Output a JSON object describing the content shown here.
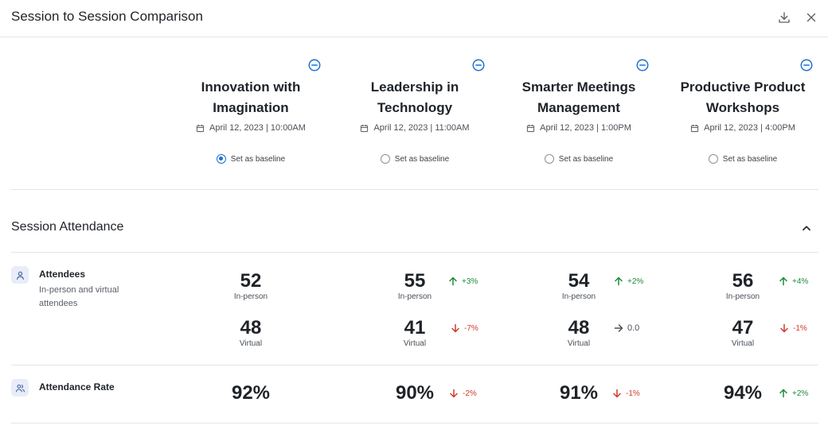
{
  "header": {
    "title": "Session to Session Comparison",
    "download_icon": "download-icon",
    "close_icon": "close-icon"
  },
  "sessions": [
    {
      "title_line1": "Innovation with",
      "title_line2": "Imagination",
      "date": "April 12, 2023 | 10:00AM",
      "baseline_label": "Set as baseline",
      "baseline": true
    },
    {
      "title_line1": "Leadership in",
      "title_line2": "Technology",
      "date": "April 12, 2023 | 11:00AM",
      "baseline_label": "Set as baseline",
      "baseline": false
    },
    {
      "title_line1": "Smarter Meetings",
      "title_line2": "Management",
      "date": "April 12, 2023 | 1:00PM",
      "baseline_label": "Set as baseline",
      "baseline": false
    },
    {
      "title_line1": "Productive Product",
      "title_line2": "Workshops",
      "date": "April 12, 2023 | 4:00PM",
      "baseline_label": "Set as baseline",
      "baseline": false
    }
  ],
  "section": {
    "title": "Session Attendance"
  },
  "attendees": {
    "label": "Attendees",
    "description": "In-person and virtual attendees",
    "in_person_label": "In-person",
    "virtual_label": "Virtual",
    "values": [
      {
        "in_person": "52",
        "virtual": "48",
        "in_change": "",
        "in_dir": "",
        "v_change": "",
        "v_dir": ""
      },
      {
        "in_person": "55",
        "virtual": "41",
        "in_change": "+3%",
        "in_dir": "up",
        "v_change": "-7%",
        "v_dir": "down"
      },
      {
        "in_person": "54",
        "virtual": "48",
        "in_change": "+2%",
        "in_dir": "up",
        "v_change": "0.0",
        "v_dir": "flat"
      },
      {
        "in_person": "56",
        "virtual": "47",
        "in_change": "+4%",
        "in_dir": "up",
        "v_change": "-1%",
        "v_dir": "down"
      }
    ]
  },
  "attendance_rate": {
    "label": "Attendance Rate",
    "values": [
      {
        "value": "92%",
        "change": "",
        "dir": ""
      },
      {
        "value": "90%",
        "change": "-2%",
        "dir": "down"
      },
      {
        "value": "91%",
        "change": "-1%",
        "dir": "down"
      },
      {
        "value": "94%",
        "change": "+2%",
        "dir": "up"
      }
    ]
  },
  "colors": {
    "accent": "#1a6fd1",
    "up": "#1d8a3a",
    "down": "#d13b2a",
    "divider": "#e3e5e8"
  }
}
